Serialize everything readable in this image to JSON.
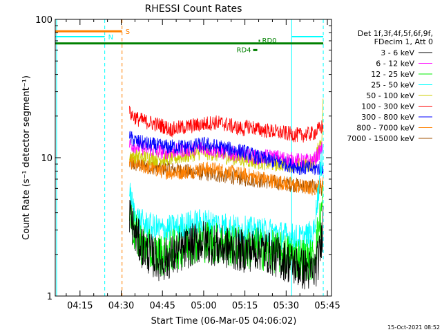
{
  "chart_data": {
    "type": "line",
    "title": "RHESSI Count Rates",
    "xlabel": "Start Time (06-Mar-05 04:06:02)",
    "ylabel": "Count Rate (s⁻¹ detector segment⁻¹)",
    "y_scale": "log",
    "ylim": [
      1,
      100
    ],
    "xlim_minutes_after_04_00": [
      6.0,
      46.5
    ],
    "x_ticks": [
      {
        "label": "04:15",
        "minute": 15
      },
      {
        "label": "04:30",
        "minute": 30
      },
      {
        "label": "04:45",
        "minute": 45
      },
      {
        "label": "05:00",
        "minute": 60
      },
      {
        "label": "05:15",
        "minute": 75
      },
      {
        "label": "05:30",
        "minute": 90
      },
      {
        "label": "05:45",
        "minute": 105
      }
    ],
    "y_ticks": [
      {
        "label": "1",
        "value": 1
      },
      {
        "label": "10",
        "value": 10
      },
      {
        "label": "100",
        "value": 100
      }
    ],
    "legend": {
      "position": "right",
      "header": [
        "Det 1f,3f,4f,5f,6f,9f,",
        "FDecim 1, Att 0"
      ],
      "entries": [
        {
          "name": "3 - 6 keV",
          "color": "#000000"
        },
        {
          "name": "6 - 12 keV",
          "color": "#ff00ff"
        },
        {
          "name": "12 - 25 keV",
          "color": "#00ee00"
        },
        {
          "name": "25 - 50 keV",
          "color": "#00ffff"
        },
        {
          "name": "50 - 100 keV",
          "color": "#cccc00"
        },
        {
          "name": "100 - 300 keV",
          "color": "#ff0000"
        },
        {
          "name": "300 - 800 keV",
          "color": "#0000ff"
        },
        {
          "name": "800 - 7000 keV",
          "color": "#ff8000"
        },
        {
          "name": "7000 - 15000 keV",
          "color": "#a05000"
        }
      ]
    },
    "series": [
      {
        "name": "3 - 6 keV",
        "color": "#000000",
        "start": 33,
        "end": 103.5,
        "x": [
          33,
          35,
          38,
          42,
          45,
          50,
          55,
          60,
          65,
          70,
          75,
          80,
          85,
          90,
          95,
          100,
          102,
          103,
          103.5
        ],
        "y": [
          4.0,
          2.8,
          2.2,
          1.9,
          1.8,
          2.0,
          2.3,
          2.5,
          2.3,
          2.2,
          2.1,
          2.2,
          2.0,
          1.8,
          1.6,
          1.5,
          1.9,
          2.8,
          4.0
        ]
      },
      {
        "name": "6 - 12 keV",
        "color": "#ff00ff",
        "start": 33,
        "end": 103.5,
        "x": [
          33,
          36,
          40,
          45,
          50,
          55,
          60,
          65,
          70,
          75,
          80,
          85,
          90,
          95,
          100,
          103.5
        ],
        "y": [
          12.5,
          12.0,
          11.5,
          11.0,
          11.2,
          11.5,
          11.8,
          11.2,
          10.8,
          10.5,
          10.0,
          10.2,
          9.8,
          9.5,
          9.5,
          12.0
        ]
      },
      {
        "name": "12 - 25 keV",
        "color": "#00ee00",
        "start": 33,
        "end": 103.5,
        "x": [
          33,
          35,
          38,
          42,
          45,
          50,
          55,
          60,
          65,
          70,
          75,
          80,
          85,
          90,
          95,
          100,
          103.5
        ],
        "y": [
          4.0,
          2.8,
          2.3,
          2.0,
          2.0,
          2.2,
          2.4,
          2.5,
          2.4,
          2.3,
          2.2,
          2.2,
          2.1,
          2.0,
          1.9,
          1.8,
          5.0
        ]
      },
      {
        "name": "25 - 50 keV",
        "color": "#00ffff",
        "start": 33,
        "end": 103.5,
        "x": [
          33,
          35,
          38,
          42,
          45,
          50,
          55,
          60,
          65,
          70,
          75,
          80,
          85,
          90,
          95,
          100,
          103.5
        ],
        "y": [
          5.5,
          3.8,
          3.3,
          3.1,
          3.0,
          3.1,
          3.3,
          3.4,
          3.3,
          3.1,
          3.0,
          2.9,
          2.9,
          2.7,
          2.6,
          2.8,
          12.0
        ]
      },
      {
        "name": "50 - 100 keV",
        "color": "#cccc00",
        "start": 33,
        "end": 103.5,
        "x": [
          33,
          36,
          40,
          45,
          50,
          55,
          60,
          65,
          70,
          75,
          80,
          85,
          90,
          95,
          100,
          103,
          103.5
        ],
        "y": [
          10.5,
          10.2,
          10.0,
          9.8,
          10.0,
          10.5,
          11.0,
          10.5,
          10.0,
          9.7,
          9.3,
          9.0,
          9.0,
          8.8,
          9.0,
          14.0,
          28.0
        ]
      },
      {
        "name": "100 - 300 keV",
        "color": "#ff0000",
        "start": 33,
        "end": 103.5,
        "x": [
          33,
          36,
          40,
          45,
          48,
          52,
          56,
          60,
          64,
          68,
          72,
          75,
          76,
          80,
          85,
          90,
          95,
          100,
          103.5
        ],
        "y": [
          21.0,
          19.0,
          18.0,
          17.0,
          16.0,
          16.5,
          17.0,
          17.5,
          18.0,
          17.5,
          16.5,
          16.0,
          17.0,
          16.0,
          15.5,
          15.0,
          14.5,
          15.0,
          17.0
        ]
      },
      {
        "name": "300 - 800 keV",
        "color": "#0000ff",
        "start": 33,
        "end": 103.5,
        "x": [
          33,
          36,
          40,
          45,
          50,
          55,
          60,
          65,
          70,
          75,
          80,
          85,
          90,
          95,
          100,
          103.5
        ],
        "y": [
          14.0,
          13.0,
          12.5,
          12.0,
          12.0,
          12.0,
          12.5,
          12.0,
          11.5,
          11.0,
          10.0,
          9.5,
          9.0,
          8.5,
          8.3,
          8.5
        ]
      },
      {
        "name": "800 - 7000 keV",
        "color": "#ff8000",
        "start": 33,
        "end": 103.5,
        "x": [
          33,
          36,
          40,
          45,
          50,
          55,
          60,
          65,
          70,
          75,
          80,
          85,
          90,
          95,
          100,
          103.5
        ],
        "y": [
          9.5,
          8.8,
          8.5,
          8.0,
          7.8,
          8.0,
          8.3,
          8.2,
          7.8,
          7.5,
          7.2,
          6.8,
          6.5,
          6.2,
          6.0,
          6.5
        ]
      },
      {
        "name": "7000 - 15000 keV",
        "color": "#a05000",
        "start": 33,
        "end": 103.5,
        "x": [
          33,
          103.5
        ],
        "y": [
          9.0,
          6.0
        ]
      }
    ],
    "markers": [
      {
        "label": "S",
        "color": "#ff8000",
        "x_start": 6.0,
        "x_end": 30.3,
        "value": 82
      },
      {
        "label": "N",
        "color": "#00ffff",
        "x_start": 6.0,
        "x_end": 24.0,
        "value": 75
      },
      {
        "label": "",
        "color": "#00ffff",
        "x_start": 92.0,
        "x_end": 103.5,
        "value": 75
      },
      {
        "label": "",
        "color": "#008000",
        "x_start": 6.0,
        "x_end": 103.5,
        "value": 67
      },
      {
        "label": "RD4",
        "color": "#008000",
        "x_start": 78.0,
        "x_end": 79.5,
        "value": 60
      },
      {
        "label": "RD0",
        "color": "#008000",
        "x_start": 80.0,
        "x_end": 80.5,
        "value": 70
      }
    ],
    "vertical_lines": [
      {
        "x": 6.5,
        "color": "#00ffff",
        "style": "solid"
      },
      {
        "x": 24.0,
        "color": "#00ffff",
        "style": "dashed"
      },
      {
        "x": 30.3,
        "color": "#ff8000",
        "style": "dashed"
      },
      {
        "x": 92.0,
        "color": "#00ffff",
        "style": "solid"
      },
      {
        "x": 103.5,
        "color": "#00ffff",
        "style": "dashed"
      }
    ],
    "grid": false
  },
  "footer": {
    "timestamp": "15-Oct-2021 08:52"
  }
}
